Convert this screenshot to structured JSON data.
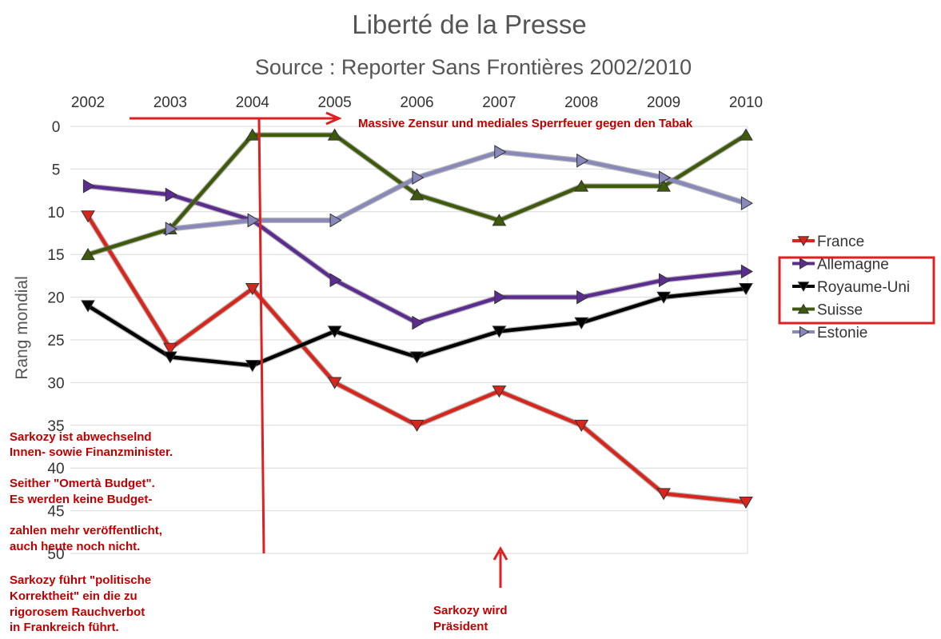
{
  "chart_data": {
    "type": "line",
    "title": "Liberté de la Presse",
    "subtitle": "Source : Reporter Sans Frontières 2002/2010",
    "ylabel": "Rang mondial",
    "xlabel": "",
    "x": [
      "2002",
      "2003",
      "2004",
      "2005",
      "2006",
      "2007",
      "2008",
      "2009",
      "2010"
    ],
    "ylim": [
      0,
      50
    ],
    "y_inverted": true,
    "y_ticks": [
      "0",
      "5",
      "10",
      "15",
      "20",
      "25",
      "30",
      "35",
      "40",
      "45",
      "50"
    ],
    "grid": true,
    "legend_position": "right",
    "series": [
      {
        "name": "France",
        "values": [
          10.5,
          26,
          19,
          30,
          35,
          31,
          35,
          43,
          44
        ],
        "color": "#d9261c",
        "marker": "triangle-down"
      },
      {
        "name": "Allemagne",
        "values": [
          7,
          8,
          11,
          18,
          23,
          20,
          20,
          18,
          17
        ],
        "color": "#5c2d91",
        "marker": "triangle-right"
      },
      {
        "name": "Royaume-Uni",
        "values": [
          21,
          27,
          28,
          24,
          27,
          24,
          23,
          20,
          19
        ],
        "color": "#000000",
        "marker": "triangle-down"
      },
      {
        "name": "Suisse",
        "values": [
          15,
          12,
          1,
          1,
          8,
          11,
          7,
          7,
          1
        ],
        "color": "#3f5a0b",
        "marker": "triangle-up"
      },
      {
        "name": "Estonie",
        "values": [
          null,
          12,
          11,
          11,
          6,
          3,
          4,
          6,
          9
        ],
        "color": "#8888bb",
        "marker": "triangle-right"
      }
    ]
  },
  "annotations": {
    "top_arrow_text": "Massive Zensur und mediales Sperrfeuer gegen den Tabak",
    "left_text": [
      "Sarkozy ist abwechselnd",
      "Innen- sowie Finanzminister.",
      "Seither \"Omertà Budget\".",
      "Es werden keine Budget-",
      "zahlen mehr veröffentlicht,",
      "auch heute noch nicht.",
      "Sarkozy führt \"politische",
      "Korrektheit\" ein die zu",
      "rigorosem Rauchverbot",
      "in Frankreich führt."
    ],
    "bottom_text": [
      "Sarkozy wird",
      "Präsident"
    ],
    "highlight_box_color": "#e02020",
    "annotation_color": "#c00000"
  }
}
